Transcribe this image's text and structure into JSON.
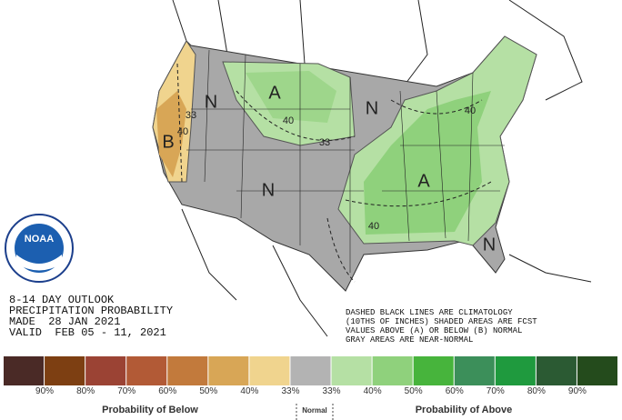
{
  "logo": "NOAA",
  "outlook": [
    "8-14 DAY OUTLOOK",
    "PRECIPITATION PROBABILITY",
    "MADE  28 JAN 2021",
    "VALID  FEB 05 - 11, 2021"
  ],
  "notes": [
    "DASHED BLACK LINES ARE CLIMATOLOGY",
    "(10THS OF INCHES) SHADED AREAS ARE FCST",
    "VALUES ABOVE (A) OR BELOW (B) NORMAL",
    "GRAY AREAS ARE NEAR-NORMAL"
  ],
  "map_labels": [
    {
      "text": "A"
    },
    {
      "text": "N"
    },
    {
      "text": "N"
    },
    {
      "text": "N"
    },
    {
      "text": "B"
    },
    {
      "text": "A"
    },
    {
      "text": "N"
    },
    {
      "text": "40"
    },
    {
      "text": "33"
    },
    {
      "text": "40"
    },
    {
      "text": "33"
    },
    {
      "text": "40"
    },
    {
      "text": "40"
    }
  ],
  "legend": {
    "colors": [
      "#4a2a26",
      "#7d3f12",
      "#9b4334",
      "#b25a36",
      "#c27a3c",
      "#d8a656",
      "#f0d48e",
      "#b3b3b3",
      "#b5e0a4",
      "#8fd17c",
      "#47b43c",
      "#3c8f5a",
      "#1f9a3e",
      "#2b5a33",
      "#244b1c"
    ],
    "ticks": [
      "90%",
      "80%",
      "70%",
      "60%",
      "50%",
      "40%",
      "33%",
      "33%",
      "40%",
      "50%",
      "60%",
      "70%",
      "80%",
      "90%"
    ],
    "below": "Probability of Below",
    "normal": "Normal",
    "above": "Probability of Above"
  }
}
